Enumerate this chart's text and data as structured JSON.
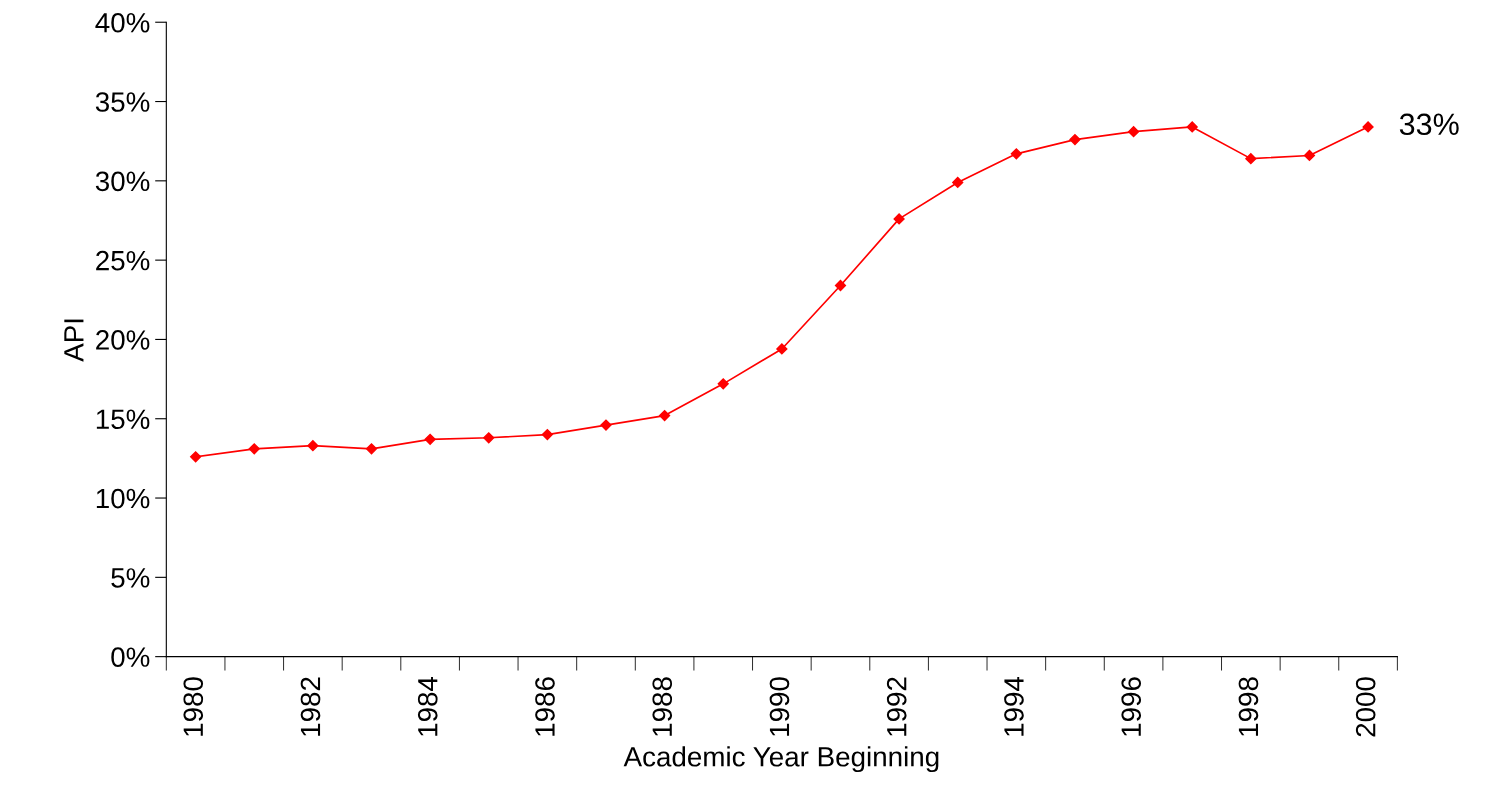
{
  "chart_data": {
    "type": "line",
    "xlabel": "Academic Year Beginning",
    "ylabel": "API",
    "categories": [
      "1980",
      null,
      "1982",
      null,
      "1984",
      null,
      "1986",
      null,
      "1988",
      null,
      "1990",
      null,
      "1992",
      null,
      "1994",
      null,
      "1996",
      null,
      "1998",
      null,
      "2000"
    ],
    "series": [
      {
        "color": "#ff0000",
        "values": [
          12.6,
          13.1,
          13.3,
          13.1,
          13.7,
          13.8,
          14.0,
          14.6,
          15.2,
          17.2,
          19.4,
          23.4,
          27.6,
          29.9,
          31.7,
          32.6,
          33.1,
          33.4,
          31.4,
          31.6,
          33.4
        ]
      }
    ],
    "ylim": [
      0,
      40
    ],
    "yticks": [
      {
        "value": 0,
        "label": "0%"
      },
      {
        "value": 5,
        "label": "5%"
      },
      {
        "value": 10,
        "label": "10%"
      },
      {
        "value": 15,
        "label": "15%"
      },
      {
        "value": 20,
        "label": "20%"
      },
      {
        "value": 25,
        "label": "25%"
      },
      {
        "value": 30,
        "label": "30%"
      },
      {
        "value": 35,
        "label": "35%"
      },
      {
        "value": 40,
        "label": "40%"
      }
    ],
    "annotations": [
      {
        "text": "33%",
        "x": "2000",
        "y": 33.4
      }
    ],
    "marker": "diamond",
    "line_style": "solid",
    "grid": false,
    "legend": false
  }
}
